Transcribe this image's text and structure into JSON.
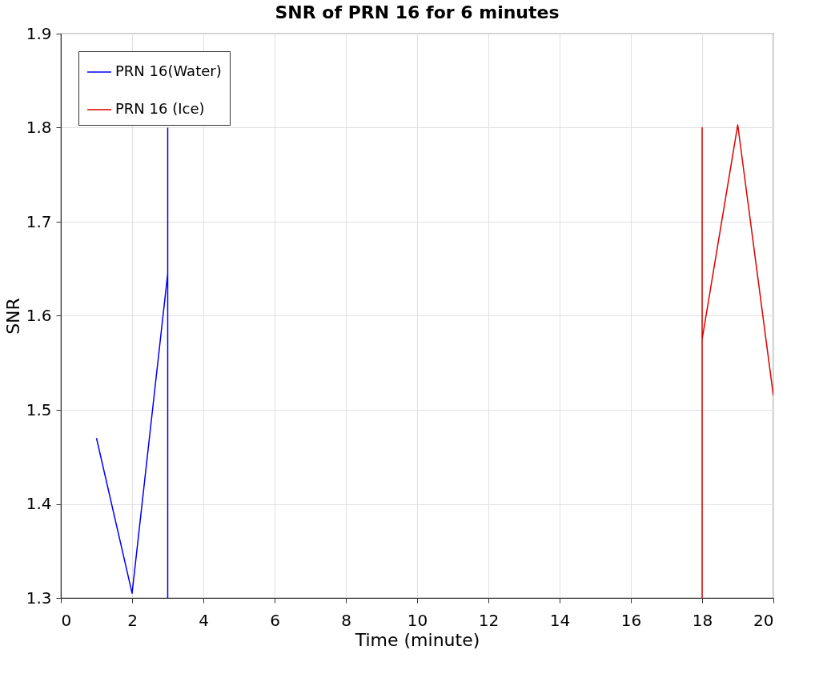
{
  "chart_data": {
    "type": "line",
    "title": "SNR of PRN 16 for 6 minutes",
    "xlabel": "Time (minute)",
    "ylabel": "SNR",
    "series": [
      {
        "name": "PRN 16(Water)",
        "color": "#0000ff",
        "x": [
          1,
          2,
          3,
          3,
          3
        ],
        "values": [
          1.47,
          1.305,
          1.645,
          1.3,
          1.8
        ]
      },
      {
        "name": "PRN 16 (Ice)",
        "color": "#dd0000",
        "x": [
          18,
          18,
          18,
          19,
          20
        ],
        "values": [
          1.3,
          1.8,
          1.575,
          1.803,
          1.515
        ]
      }
    ],
    "xlim": [
      0,
      20
    ],
    "ylim": [
      1.3,
      1.9
    ],
    "xticks": [
      0,
      2,
      4,
      6,
      8,
      10,
      12,
      14,
      16,
      18,
      20
    ],
    "yticks": [
      1.3,
      1.4,
      1.5,
      1.6,
      1.7,
      1.8,
      1.9
    ],
    "grid": true,
    "legend": "top left",
    "marker": "none",
    "line_style": "solid"
  }
}
